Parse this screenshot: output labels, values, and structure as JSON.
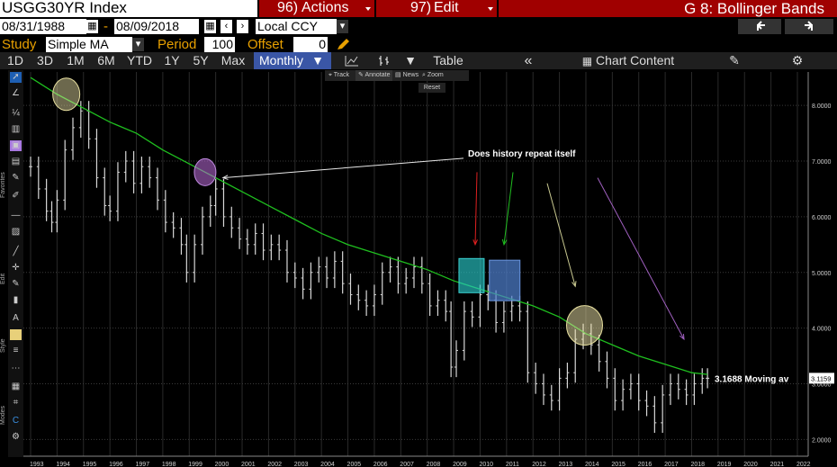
{
  "header": {
    "ticker": "USGG30YR Index",
    "actions_num": "96)",
    "actions_label": "Actions",
    "edit_num": "97)",
    "edit_label": "Edit",
    "page_label": "G 8: Bollinger Bands"
  },
  "dates": {
    "start": "08/31/1988",
    "sep": "-",
    "end": "08/09/2018",
    "currency": "Local CCY"
  },
  "study": {
    "label": "Study",
    "type": "Simple MA",
    "period_label": "Period",
    "period": "100",
    "offset_label": "Offset",
    "offset": "0"
  },
  "toolbar": {
    "ranges": [
      "1D",
      "3D",
      "1M",
      "6M",
      "YTD",
      "1Y",
      "5Y",
      "Max"
    ],
    "interval": "Monthly",
    "table_label": "Table",
    "chart_content_label": "Chart Content"
  },
  "mini_toolbar": {
    "track": "Track",
    "annotate": "Annotate",
    "news": "News",
    "zoom": "Zoom",
    "reset": "Reset"
  },
  "sidebar_labels": {
    "favorites": "Favorites",
    "edit": "Edit",
    "style": "Style",
    "modes": "Modes"
  },
  "annotations": {
    "question": "Does history repeat itself",
    "ma_label": "3.1688 Moving av",
    "last_value": "3.1159"
  },
  "colors": {
    "accent_orange": "#e8a000",
    "header_red": "#a00000",
    "ma_line": "#1fbf1f",
    "price_bars": "#d8d8d8"
  },
  "chart_data": {
    "type": "line",
    "title": "",
    "xlabel": "",
    "ylabel": "",
    "x_ticks": [
      "1993",
      "1994",
      "1995",
      "1996",
      "1997",
      "1998",
      "1999",
      "2000",
      "2001",
      "2002",
      "2003",
      "2004",
      "2005",
      "2006",
      "2007",
      "2008",
      "2009",
      "2010",
      "2011",
      "2012",
      "2013",
      "2014",
      "2015",
      "2016",
      "2017",
      "2018",
      "2019",
      "2020",
      "2021",
      "2022"
    ],
    "y_ticks": [
      "8.0000",
      "7.0000",
      "6.0000",
      "5.0000",
      "4.0000",
      "3.0000",
      "2.0000"
    ],
    "ylim": [
      1.7,
      8.6
    ],
    "series": [
      {
        "name": "USGG30YR Index",
        "x": [
          1993.0,
          1993.3,
          1993.6,
          1993.8,
          1994.0,
          1994.3,
          1994.6,
          1994.9,
          1995.2,
          1995.5,
          1995.8,
          1996.0,
          1996.3,
          1996.6,
          1996.9,
          1997.2,
          1997.5,
          1997.8,
          1998.1,
          1998.4,
          1998.7,
          1998.9,
          1999.2,
          1999.5,
          1999.8,
          2000.0,
          2000.3,
          2000.6,
          2000.9,
          2001.2,
          2001.5,
          2001.8,
          2002.1,
          2002.4,
          2002.7,
          2003.0,
          2003.3,
          2003.6,
          2003.9,
          2004.2,
          2004.5,
          2004.8,
          2005.1,
          2005.4,
          2005.7,
          2006.0,
          2006.3,
          2006.6,
          2006.9,
          2007.2,
          2007.5,
          2007.8,
          2008.1,
          2008.4,
          2008.7,
          2008.9,
          2009.1,
          2009.4,
          2009.7,
          2010.0,
          2010.3,
          2010.6,
          2010.9,
          2011.2,
          2011.5,
          2011.8,
          2012.1,
          2012.4,
          2012.7,
          2013.0,
          2013.3,
          2013.6,
          2013.9,
          2014.2,
          2014.5,
          2014.8,
          2015.1,
          2015.4,
          2015.7,
          2016.0,
          2016.3,
          2016.6,
          2016.9,
          2017.2,
          2017.5,
          2017.8,
          2018.1,
          2018.4,
          2018.6
        ],
        "values": [
          6.9,
          6.5,
          6.1,
          5.9,
          6.3,
          7.2,
          7.6,
          7.9,
          7.4,
          6.7,
          6.2,
          6.1,
          6.8,
          7.0,
          6.6,
          6.9,
          6.7,
          6.3,
          5.9,
          5.8,
          5.5,
          5.0,
          5.5,
          6.0,
          6.2,
          6.5,
          6.0,
          5.8,
          5.6,
          5.5,
          5.7,
          5.4,
          5.5,
          5.4,
          5.0,
          4.9,
          4.7,
          5.0,
          5.1,
          4.9,
          5.2,
          4.8,
          4.6,
          4.5,
          4.4,
          4.6,
          5.0,
          5.1,
          4.8,
          4.9,
          5.1,
          4.8,
          4.4,
          4.5,
          4.3,
          3.3,
          3.6,
          4.3,
          4.2,
          4.6,
          4.5,
          4.1,
          4.3,
          4.4,
          4.3,
          3.2,
          3.0,
          2.8,
          2.7,
          3.1,
          3.2,
          3.8,
          3.9,
          3.7,
          3.4,
          3.1,
          2.7,
          2.9,
          3.0,
          2.7,
          2.6,
          2.3,
          2.8,
          3.0,
          2.9,
          2.8,
          3.0,
          3.1,
          3.1
        ]
      },
      {
        "name": "Simple MA 100",
        "x": [
          1993.0,
          1994.0,
          1995.0,
          1996.0,
          1997.0,
          1998.0,
          1999.0,
          2000.0,
          2001.0,
          2002.0,
          2003.0,
          2004.0,
          2005.0,
          2006.0,
          2007.0,
          2008.0,
          2009.0,
          2010.0,
          2011.0,
          2012.0,
          2013.0,
          2014.0,
          2015.0,
          2016.0,
          2017.0,
          2018.0,
          2018.6
        ],
        "values": [
          8.5,
          8.2,
          7.95,
          7.7,
          7.5,
          7.2,
          6.95,
          6.7,
          6.45,
          6.2,
          5.95,
          5.7,
          5.5,
          5.35,
          5.2,
          5.05,
          4.85,
          4.7,
          4.55,
          4.4,
          4.2,
          3.9,
          3.7,
          3.5,
          3.35,
          3.2,
          3.1688
        ]
      }
    ],
    "legend": "none",
    "grid": true
  }
}
